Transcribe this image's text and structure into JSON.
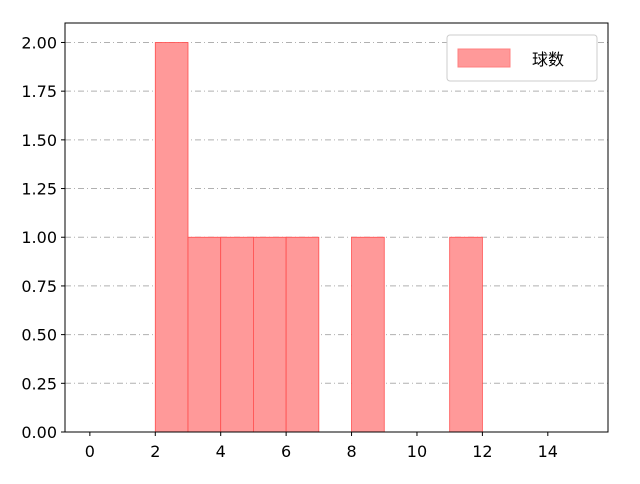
{
  "chart_data": {
    "type": "bar",
    "title": "",
    "xlabel": "",
    "ylabel": "",
    "bins": [
      {
        "x0": 2,
        "x1": 3,
        "value": 2
      },
      {
        "x0": 3,
        "x1": 4,
        "value": 1
      },
      {
        "x0": 4,
        "x1": 5,
        "value": 1
      },
      {
        "x0": 5,
        "x1": 6,
        "value": 1
      },
      {
        "x0": 6,
        "x1": 7,
        "value": 1
      },
      {
        "x0": 8,
        "x1": 9,
        "value": 1
      },
      {
        "x0": 11,
        "x1": 12,
        "value": 1
      }
    ],
    "series": [
      {
        "name": "球数"
      }
    ],
    "xlim": [
      -0.76,
      15.84
    ],
    "ylim": [
      0,
      2.1
    ],
    "xticks": [
      "0",
      "2",
      "4",
      "6",
      "8",
      "10",
      "12",
      "14"
    ],
    "xtick_values": [
      0,
      2,
      4,
      6,
      8,
      10,
      12,
      14
    ],
    "yticks": [
      "0.00",
      "0.25",
      "0.50",
      "0.75",
      "1.00",
      "1.25",
      "1.50",
      "1.75",
      "2.00"
    ],
    "ytick_values": [
      0,
      0.25,
      0.5,
      0.75,
      1,
      1.25,
      1.5,
      1.75,
      2
    ],
    "grid": "y dash-dot",
    "legend_position": "top-right",
    "bar_color": "#ff9999",
    "bar_edge_color": "#ff4d4d"
  }
}
